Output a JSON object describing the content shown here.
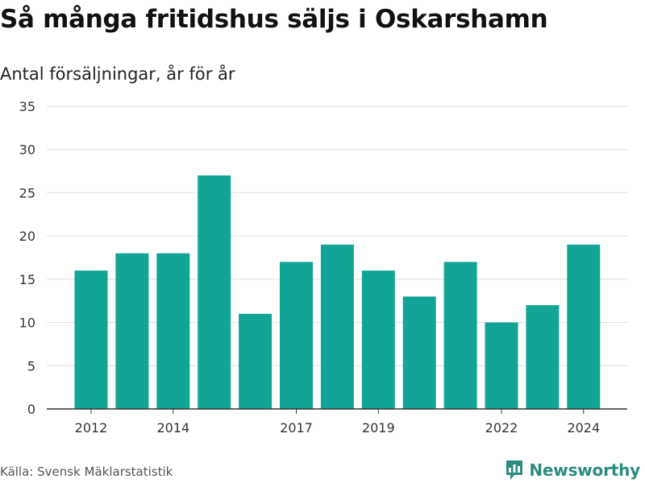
{
  "title": "Så många fritidshus säljs i Oskarshamn",
  "subtitle": "Antal försäljningar, år för år",
  "source": "Källa: Svensk Mäklarstatistik",
  "brand": "Newsworthy",
  "colors": {
    "bar": "#12a497",
    "grid": "#dddddd",
    "axis": "#333333",
    "brand": "#2a8c7f"
  },
  "chart_data": {
    "type": "bar",
    "title": "Så många fritidshus säljs i Oskarshamn",
    "subtitle": "Antal försäljningar, år för år",
    "categories": [
      2012,
      2013,
      2014,
      2015,
      2016,
      2017,
      2018,
      2019,
      2020,
      2021,
      2022,
      2023,
      2024
    ],
    "values": [
      16,
      18,
      18,
      27,
      11,
      17,
      19,
      16,
      13,
      17,
      10,
      12,
      19
    ],
    "xtick_labels": [
      "2012",
      "2014",
      "2017",
      "2019",
      "2022",
      "2024"
    ],
    "ytick_labels": [
      "0",
      "5",
      "10",
      "15",
      "20",
      "25",
      "30",
      "35"
    ],
    "ylim": [
      0,
      35
    ],
    "xlabel": "",
    "ylabel": "",
    "grid": true
  }
}
